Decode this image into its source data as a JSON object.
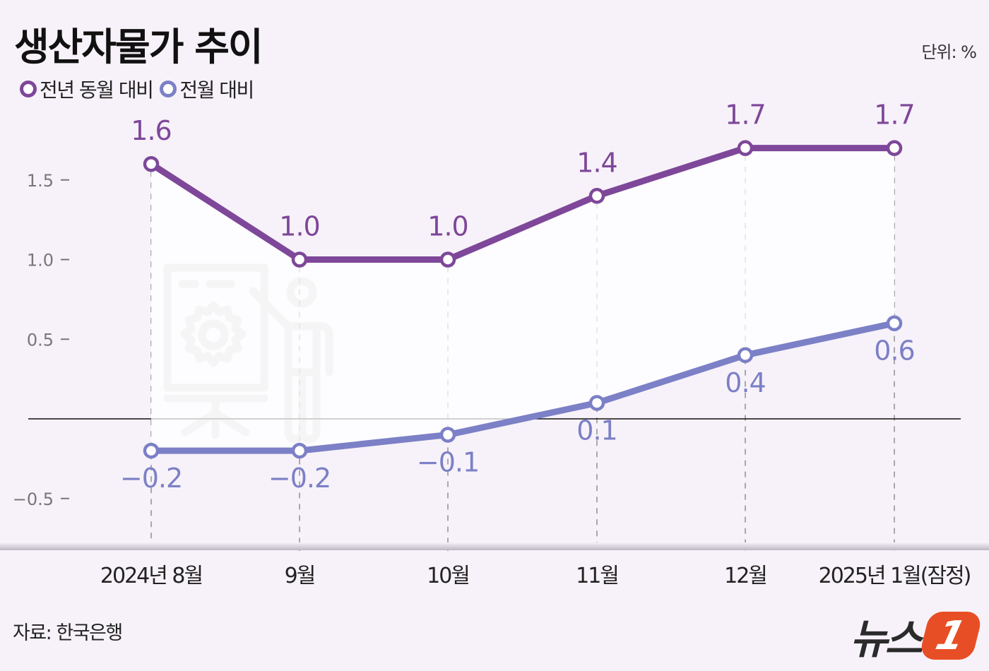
{
  "header": {
    "title": "생산자물가 추이",
    "unit": "단위: %"
  },
  "legend": {
    "items": [
      {
        "label": "전년 동월 대비",
        "color": "#7e4799"
      },
      {
        "label": "전월 대비",
        "color": "#7c80c6"
      }
    ]
  },
  "footer": {
    "source": "자료: 한국은행",
    "logo_text": "뉴스",
    "logo_badge": "1"
  },
  "chart_data": {
    "type": "line",
    "title": "생산자물가 추이",
    "xlabel": "",
    "ylabel": "단위: %",
    "categories": [
      "2024년 8월",
      "9월",
      "10월",
      "11월",
      "12월",
      "2025년 1월(잠정)"
    ],
    "series": [
      {
        "name": "전년 동월 대비",
        "color": "#7e4799",
        "values": [
          1.6,
          1.0,
          1.0,
          1.4,
          1.7,
          1.7
        ],
        "labels": [
          "1.6",
          "1.0",
          "1.0",
          "1.4",
          "1.7",
          "1.7"
        ]
      },
      {
        "name": "전월 대비",
        "color": "#7c80c6",
        "values": [
          -0.2,
          -0.2,
          -0.1,
          0.1,
          0.4,
          0.6
        ],
        "labels": [
          "−0.2",
          "−0.2",
          "−0.1",
          "0.1",
          "0.4",
          "0.6"
        ]
      }
    ],
    "yticks": [
      {
        "value": 1.5,
        "label": "1.5"
      },
      {
        "value": 1.0,
        "label": "1.0"
      },
      {
        "value": 0.5,
        "label": "0.5"
      },
      {
        "value": -0.5,
        "label": "−0.5"
      }
    ],
    "ylim": [
      -0.65,
      2.0
    ],
    "grid": false,
    "legend_position": "top-left",
    "zero_line": true
  }
}
